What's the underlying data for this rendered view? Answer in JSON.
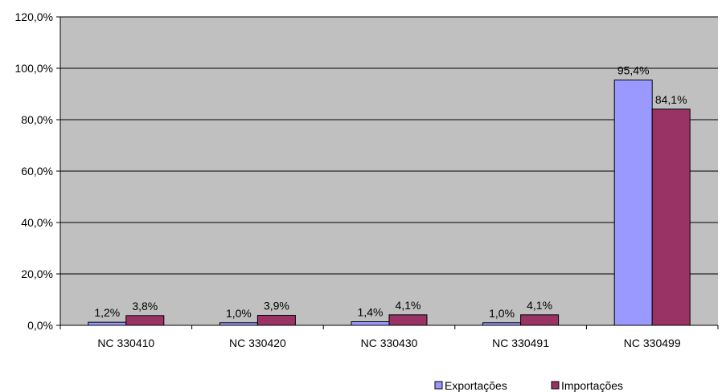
{
  "chart_data": {
    "type": "bar",
    "categories": [
      "NC 330410",
      "NC 330420",
      "NC 330430",
      "NC 330491",
      "NC 330499"
    ],
    "series": [
      {
        "name": "Exportações",
        "values": [
          1.2,
          1.0,
          1.4,
          1.0,
          95.4
        ],
        "labels": [
          "1,2%",
          "1,0%",
          "1,4%",
          "1,0%",
          "95,4%"
        ],
        "color": "#9999ff"
      },
      {
        "name": "Importações",
        "values": [
          3.8,
          3.9,
          4.1,
          4.1,
          84.1
        ],
        "labels": [
          "3,8%",
          "3,9%",
          "4,1%",
          "4,1%",
          "84,1%"
        ],
        "color": "#993366"
      }
    ],
    "y_ticks": [
      {
        "value": 0,
        "label": "0,0%"
      },
      {
        "value": 20,
        "label": "20,0%"
      },
      {
        "value": 40,
        "label": "40,0%"
      },
      {
        "value": 60,
        "label": "60,0%"
      },
      {
        "value": 80,
        "label": "80,0%"
      },
      {
        "value": 100,
        "label": "100,0%"
      },
      {
        "value": 120,
        "label": "120,0%"
      }
    ],
    "ylim": [
      0,
      120
    ],
    "grid": true,
    "legend_position": "bottom-right",
    "colors": {
      "plot_background": "#c0c0c0",
      "gridline": "#000000"
    }
  }
}
